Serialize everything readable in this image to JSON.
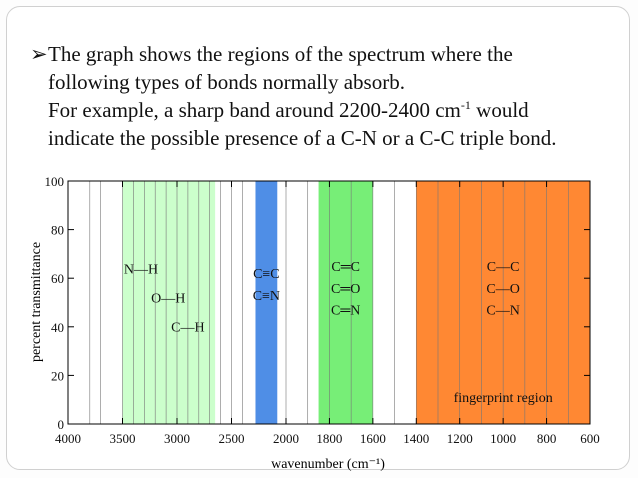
{
  "slide": {
    "bullet_symbol": "➢",
    "line1": "The graph shows the regions of the spectrum where the",
    "line2": "following types of bonds normally absorb.",
    "line3_pre": "For example, a sharp band around 2200-2400 cm",
    "line3_sup": "-1",
    "line3_post": " would",
    "line4": "indicate the possible presence of a C-N or a C-C triple bond."
  },
  "chart_data": {
    "type": "bar",
    "xlabel": "wavenumber (cm⁻¹)",
    "ylabel": "percent transmittance",
    "xlim": [
      4000,
      600
    ],
    "ylim": [
      0,
      100
    ],
    "x_ticks": [
      4000,
      3500,
      3000,
      2500,
      2000,
      1800,
      1600,
      1400,
      1200,
      1000,
      800,
      600
    ],
    "y_ticks": [
      0,
      20,
      40,
      60,
      80,
      100
    ],
    "axis_breaks": [
      2000
    ],
    "grid_lines_x": [
      3800,
      3700,
      3400,
      3300,
      3200,
      3100,
      2900,
      2800,
      2700,
      2600,
      2400,
      1900,
      1700,
      1500,
      1300,
      1100,
      900,
      700
    ],
    "regions": [
      {
        "from": 3500,
        "to": 2650,
        "color": "#ccffcc",
        "labels": [
          "N—H",
          "O—H",
          "C—H"
        ],
        "label_positions": [
          {
            "x": 3330,
            "y": 62
          },
          {
            "x": 3080,
            "y": 50
          },
          {
            "x": 2900,
            "y": 38
          }
        ]
      },
      {
        "from": 2280,
        "to": 2080,
        "color": "#4f8ee6",
        "labels": [
          "C≡C",
          "C≡N"
        ],
        "label_positions": [
          {
            "x": 2180,
            "y": 60
          },
          {
            "x": 2180,
            "y": 51
          }
        ]
      },
      {
        "from": 1850,
        "to": 1600,
        "color": "#77ee77",
        "labels": [
          "C═C",
          "C═O",
          "C═N"
        ],
        "label_positions": [
          {
            "x": 1725,
            "y": 63
          },
          {
            "x": 1725,
            "y": 54
          },
          {
            "x": 1725,
            "y": 45
          }
        ]
      },
      {
        "from": 1400,
        "to": 600,
        "color": "#ff8833",
        "labels": [
          "C—C",
          "C—O",
          "C—N",
          "fingerprint region"
        ],
        "label_positions": [
          {
            "x": 1000,
            "y": 63
          },
          {
            "x": 1000,
            "y": 54
          },
          {
            "x": 1000,
            "y": 45
          },
          {
            "x": 1000,
            "y": 9
          }
        ]
      }
    ]
  }
}
